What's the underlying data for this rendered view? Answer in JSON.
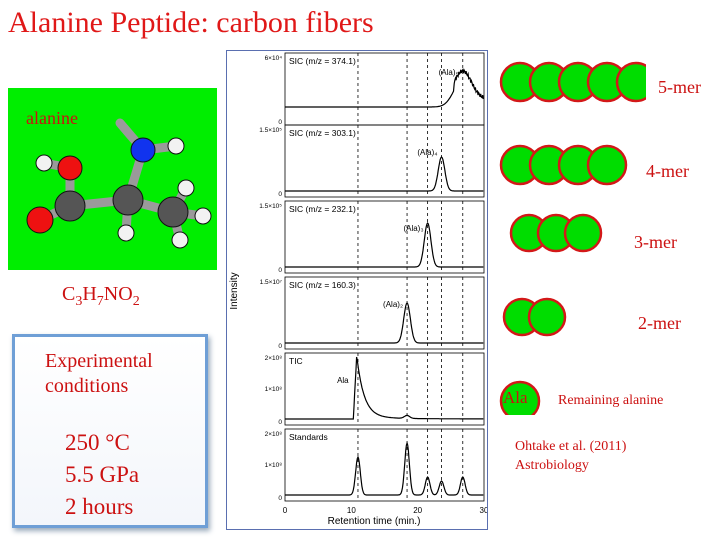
{
  "title": "Alanine Peptide: carbon fibers",
  "molecule": {
    "label": "alanine"
  },
  "formula": {
    "c": "C",
    "c_n": "3",
    "h": "H",
    "h_n": "7",
    "rest": "NO",
    "o_n": "2"
  },
  "conditions": {
    "heading_1": "Experimental",
    "heading_2": "conditions",
    "temperature": "250 °C",
    "pressure": "5.5 GPa",
    "duration": "2 hours"
  },
  "chart": {
    "ylabel": "Intensity",
    "xlabel": "Retention time (min.)",
    "x_ticks": [
      "0",
      "10",
      "20",
      "30"
    ],
    "panels": [
      {
        "label": "SIC (m/z = 374.1)",
        "ymax": "6×10⁴",
        "peak": "(Ala)₅"
      },
      {
        "label": "SIC (m/z = 303.1)",
        "ymax": "1.5×10⁵",
        "peak": "(Ala)₄"
      },
      {
        "label": "SIC (m/z = 232.1)",
        "ymax": "1.5×10⁵",
        "peak": "(Ala)₃"
      },
      {
        "label": "SIC (m/z = 160.3)",
        "ymax": "1.5×10⁷",
        "peak": "(Ala)₂"
      },
      {
        "label": "TIC",
        "ymax": "2×10⁸",
        "ymid": "1×10⁸",
        "peak": "Ala"
      },
      {
        "label": "Standards",
        "ymax": "2×10⁸",
        "ymid": "1×10⁸",
        "peak": ""
      }
    ]
  },
  "chains": [
    {
      "label": "5-mer"
    },
    {
      "label": "4-mer"
    },
    {
      "label": "3-mer"
    },
    {
      "label": "2-mer"
    }
  ],
  "monomer": {
    "text": "Ala",
    "caption": "Remaining alanine"
  },
  "reference": {
    "line1": "Ohtake et al. (2011)",
    "line2": "Astrobiology"
  },
  "colors": {
    "accent": "#cc1111",
    "bead_fill": "#00dd00",
    "bead_stroke": "#d31818",
    "box_border": "#6f9fd6"
  }
}
